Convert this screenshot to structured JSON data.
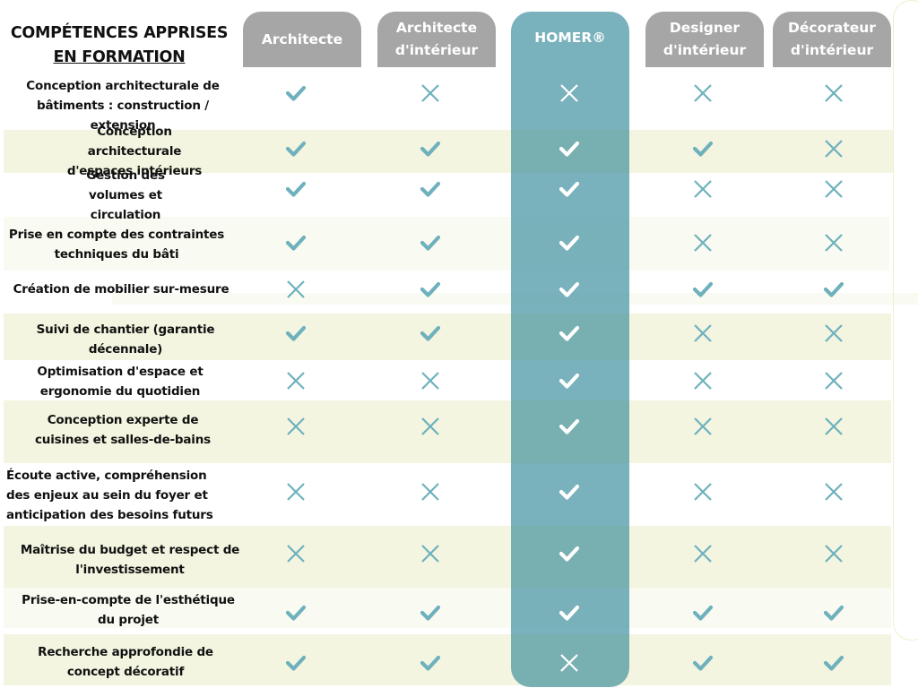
{
  "title": {
    "line1": "COMPÉTENCES APPRISES",
    "line2": "EN FORMATION"
  },
  "columns": [
    {
      "key": "architecte",
      "label_line1": "Architecte",
      "label_line2": "",
      "highlight": false
    },
    {
      "key": "architecte_interieur",
      "label_line1": "Architecte",
      "label_line2": "d'intérieur",
      "highlight": false
    },
    {
      "key": "homer",
      "label_line1": "HOMER®",
      "label_line2": "",
      "highlight": true
    },
    {
      "key": "designer_interieur",
      "label_line1": "Designer",
      "label_line2": "d'intérieur",
      "highlight": false
    },
    {
      "key": "decorateur_interieur",
      "label_line1": "Décorateur",
      "label_line2": "d'intérieur",
      "highlight": false
    }
  ],
  "colors": {
    "header_grey": "#a6a6a6",
    "homer_teal": "#7ab2bc",
    "mark_teal": "#6eb1bd",
    "row_tint": "#f3f5e0",
    "row_light": "#f9faf1"
  },
  "rows": [
    {
      "label": "Conception architecturale de bâtiments : construction / extension",
      "values": [
        "check",
        "cross",
        "cross",
        "cross",
        "cross"
      ]
    },
    {
      "label": "Conception architecturale d'espaces intérieurs",
      "values": [
        "check",
        "check",
        "check",
        "check",
        "cross"
      ]
    },
    {
      "label": "Gestion des volumes et circulation",
      "values": [
        "check",
        "check",
        "check",
        "cross",
        "cross"
      ]
    },
    {
      "label": "Prise en compte des contraintes techniques du bâti",
      "values": [
        "check",
        "check",
        "check",
        "cross",
        "cross"
      ]
    },
    {
      "label": "Création de mobilier sur-mesure",
      "values": [
        "cross",
        "check",
        "check",
        "check",
        "check"
      ]
    },
    {
      "label": "Suivi de chantier (garantie décennale)",
      "values": [
        "check",
        "check",
        "check",
        "cross",
        "cross"
      ]
    },
    {
      "label": "Optimisation d'espace et ergonomie du quotidien",
      "values": [
        "cross",
        "cross",
        "check",
        "cross",
        "cross"
      ]
    },
    {
      "label": "Conception experte de cuisines et salles-de-bains",
      "values": [
        "cross",
        "cross",
        "check",
        "cross",
        "cross"
      ]
    },
    {
      "label": "Écoute active, compréhension des enjeux au sein du foyer et anticipation des besoins futurs",
      "values": [
        "cross",
        "cross",
        "check",
        "cross",
        "cross"
      ]
    },
    {
      "label": "Maîtrise du budget et respect de l'investissement",
      "values": [
        "cross",
        "cross",
        "check",
        "cross",
        "cross"
      ]
    },
    {
      "label": "Prise-en-compte de l'esthétique du projet",
      "values": [
        "check",
        "check",
        "check",
        "check",
        "check"
      ]
    },
    {
      "label": "Recherche approfondie de concept décoratif",
      "values": [
        "check",
        "check",
        "cross",
        "check",
        "check"
      ]
    }
  ]
}
